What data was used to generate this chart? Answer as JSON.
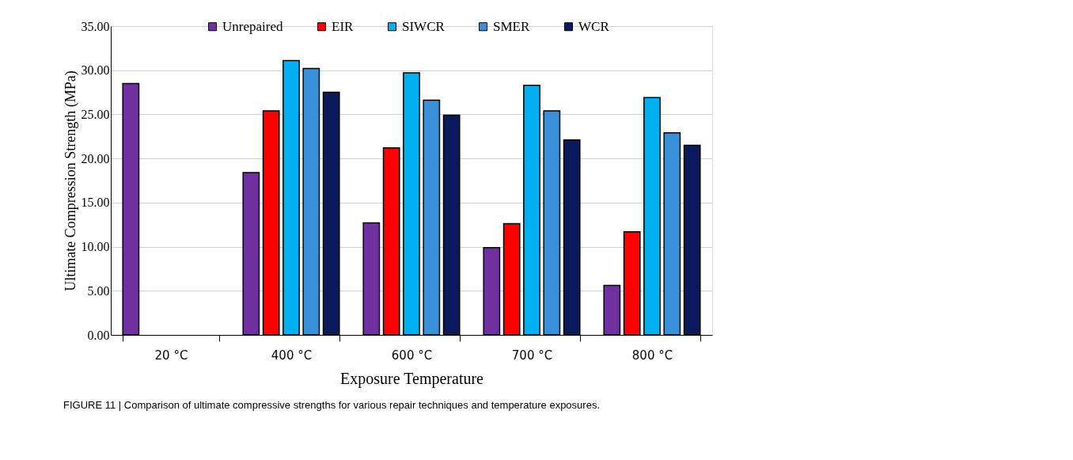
{
  "chart_data": {
    "type": "bar",
    "xlabel": "Exposure Temperature",
    "ylabel": "Ultimate Compression Strength (MPa)",
    "categories": [
      "20 °C",
      "400 °C",
      "600 °C",
      "700 °C",
      "800 °C"
    ],
    "series": [
      {
        "name": "Unrepaired",
        "color": "#7030a0",
        "values": [
          28.5,
          18.4,
          12.7,
          9.9,
          5.6
        ]
      },
      {
        "name": "EIR",
        "color": "#ff0000",
        "values": [
          null,
          25.4,
          21.2,
          12.6,
          11.7
        ]
      },
      {
        "name": "SIWCR",
        "color": "#00b0f0",
        "values": [
          null,
          31.1,
          29.7,
          28.3,
          26.9
        ]
      },
      {
        "name": "SMER",
        "color": "#3a8fd9",
        "values": [
          null,
          30.2,
          26.6,
          25.4,
          22.9
        ]
      },
      {
        "name": "WCR",
        "color": "#0b1a5c",
        "values": [
          null,
          27.5,
          24.9,
          22.1,
          21.5
        ]
      }
    ],
    "ylim": [
      0,
      35
    ],
    "yticks": [
      {
        "value": 0,
        "label": "0.00"
      },
      {
        "value": 5,
        "label": "5.00"
      },
      {
        "value": 10,
        "label": "10.00"
      },
      {
        "value": 15,
        "label": "15.00"
      },
      {
        "value": 20,
        "label": "20.00"
      },
      {
        "value": 25,
        "label": "25.00"
      },
      {
        "value": 30,
        "label": "30.00"
      },
      {
        "value": 35,
        "label": "35.00"
      }
    ],
    "grid": "y",
    "legend": "top",
    "annotations": [
      "FIGURE 11 | Comparison of ultimate compressive strengths for various repair techniques and temperature exposures."
    ]
  }
}
